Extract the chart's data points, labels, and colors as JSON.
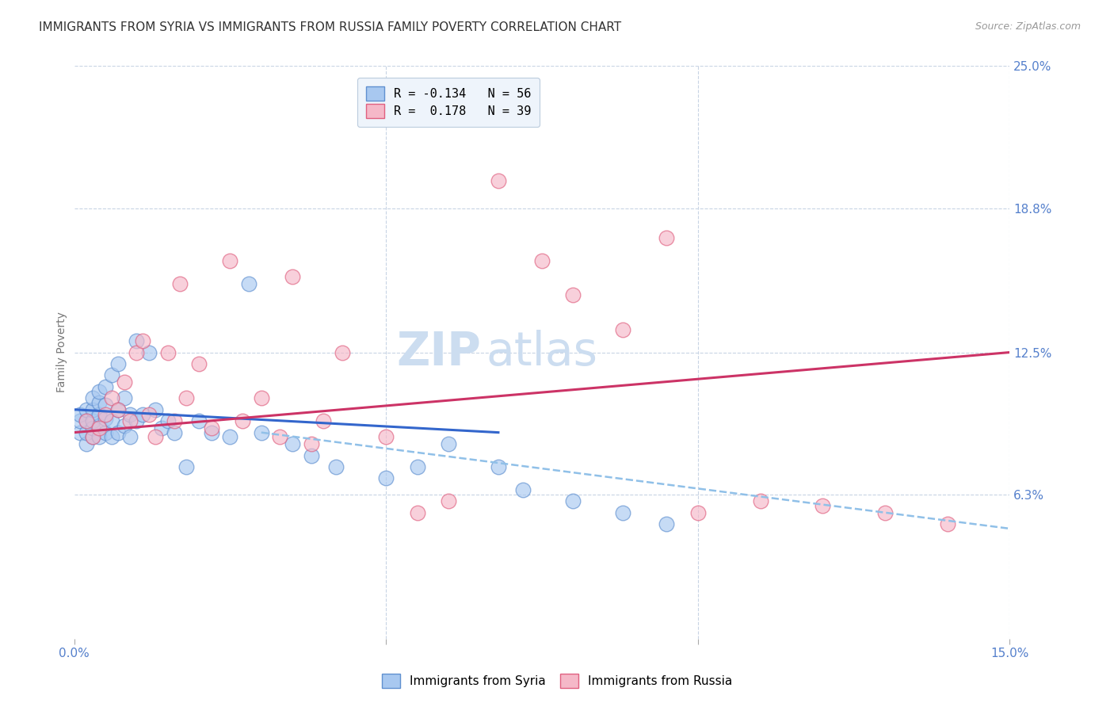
{
  "title": "IMMIGRANTS FROM SYRIA VS IMMIGRANTS FROM RUSSIA FAMILY POVERTY CORRELATION CHART",
  "source": "Source: ZipAtlas.com",
  "ylabel": "Family Poverty",
  "xlim": [
    0.0,
    0.15
  ],
  "ylim": [
    0.0,
    0.25
  ],
  "ytick_labels_right": [
    "25.0%",
    "18.8%",
    "12.5%",
    "6.3%"
  ],
  "ytick_values_right": [
    0.25,
    0.188,
    0.125,
    0.063
  ],
  "watermark_part1": "ZIP",
  "watermark_part2": "atlas",
  "legend_entries": [
    {
      "label": "R = -0.134   N = 56",
      "color": "#a8c8f0"
    },
    {
      "label": "R =  0.178   N = 39",
      "color": "#f5b8c8"
    }
  ],
  "syria_color": "#a8c8f0",
  "russia_color": "#f5b8c8",
  "syria_edge_color": "#6090d0",
  "russia_edge_color": "#e06080",
  "syria_trend_color": "#3366cc",
  "russia_trend_color": "#cc3366",
  "dashed_line_color": "#90c0e8",
  "syria_points_x": [
    0.001,
    0.001,
    0.001,
    0.002,
    0.002,
    0.002,
    0.002,
    0.003,
    0.003,
    0.003,
    0.003,
    0.003,
    0.004,
    0.004,
    0.004,
    0.004,
    0.004,
    0.005,
    0.005,
    0.005,
    0.005,
    0.006,
    0.006,
    0.006,
    0.007,
    0.007,
    0.007,
    0.008,
    0.008,
    0.009,
    0.009,
    0.01,
    0.01,
    0.011,
    0.012,
    0.013,
    0.014,
    0.015,
    0.016,
    0.018,
    0.02,
    0.022,
    0.025,
    0.028,
    0.03,
    0.035,
    0.038,
    0.042,
    0.05,
    0.055,
    0.06,
    0.068,
    0.072,
    0.08,
    0.088,
    0.095
  ],
  "syria_points_y": [
    0.09,
    0.095,
    0.098,
    0.085,
    0.09,
    0.095,
    0.1,
    0.088,
    0.092,
    0.095,
    0.1,
    0.105,
    0.088,
    0.093,
    0.098,
    0.103,
    0.108,
    0.09,
    0.096,
    0.102,
    0.11,
    0.088,
    0.095,
    0.115,
    0.09,
    0.1,
    0.12,
    0.093,
    0.105,
    0.088,
    0.098,
    0.095,
    0.13,
    0.098,
    0.125,
    0.1,
    0.092,
    0.095,
    0.09,
    0.075,
    0.095,
    0.09,
    0.088,
    0.155,
    0.09,
    0.085,
    0.08,
    0.075,
    0.07,
    0.075,
    0.085,
    0.075,
    0.065,
    0.06,
    0.055,
    0.05
  ],
  "russia_points_x": [
    0.002,
    0.003,
    0.004,
    0.005,
    0.006,
    0.007,
    0.008,
    0.009,
    0.01,
    0.011,
    0.012,
    0.013,
    0.015,
    0.016,
    0.017,
    0.018,
    0.02,
    0.022,
    0.025,
    0.027,
    0.03,
    0.033,
    0.035,
    0.038,
    0.04,
    0.043,
    0.05,
    0.055,
    0.06,
    0.068,
    0.075,
    0.08,
    0.088,
    0.095,
    0.1,
    0.11,
    0.12,
    0.13,
    0.14
  ],
  "russia_points_y": [
    0.095,
    0.088,
    0.092,
    0.098,
    0.105,
    0.1,
    0.112,
    0.095,
    0.125,
    0.13,
    0.098,
    0.088,
    0.125,
    0.095,
    0.155,
    0.105,
    0.12,
    0.092,
    0.165,
    0.095,
    0.105,
    0.088,
    0.158,
    0.085,
    0.095,
    0.125,
    0.088,
    0.055,
    0.06,
    0.2,
    0.165,
    0.15,
    0.135,
    0.175,
    0.055,
    0.06,
    0.058,
    0.055,
    0.05
  ],
  "syria_trend_x": [
    0.0,
    0.068
  ],
  "syria_trend_y": [
    0.1,
    0.09
  ],
  "russia_trend_x": [
    0.0,
    0.15
  ],
  "russia_trend_y": [
    0.09,
    0.125
  ],
  "dashed_trend_x": [
    0.03,
    0.15
  ],
  "dashed_trend_y": [
    0.09,
    0.048
  ],
  "title_fontsize": 11,
  "axis_label_fontsize": 10,
  "tick_fontsize": 11,
  "watermark_fontsize_zip": 42,
  "watermark_fontsize_atlas": 42,
  "watermark_color": "#ccddf0",
  "background_color": "#ffffff",
  "grid_color": "#c8d4e4",
  "legend_box_color": "#eef4fb"
}
